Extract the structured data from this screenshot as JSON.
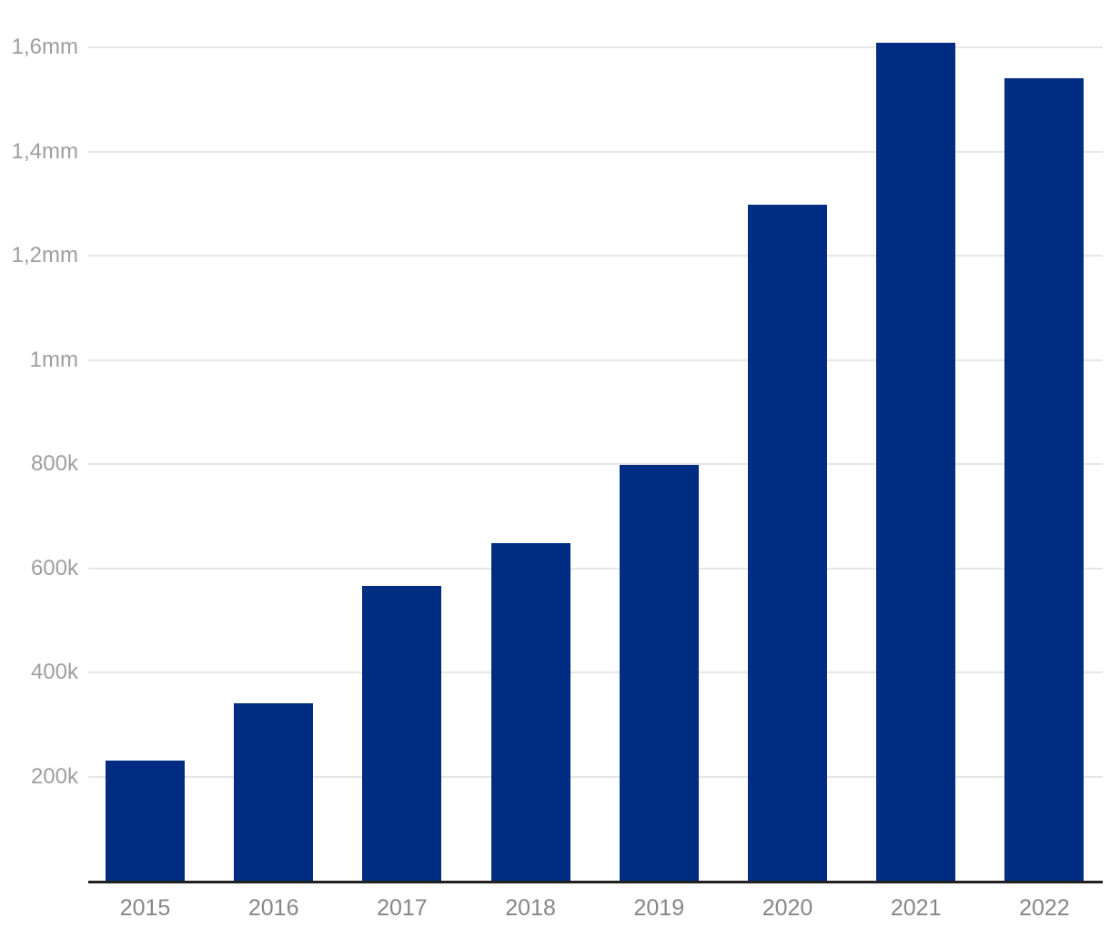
{
  "chart_data": {
    "type": "bar",
    "title": "",
    "xlabel": "",
    "ylabel": "",
    "categories": [
      "2015",
      "2016",
      "2017",
      "2018",
      "2019",
      "2020",
      "2021",
      "2022"
    ],
    "values": [
      230800,
      341400,
      566000,
      647500,
      798000,
      1298000,
      1608000,
      1541000
    ],
    "yticks": [
      {
        "value": 200000,
        "label": "200k"
      },
      {
        "value": 400000,
        "label": "400k"
      },
      {
        "value": 600000,
        "label": "600k"
      },
      {
        "value": 800000,
        "label": "800k"
      },
      {
        "value": 1000000,
        "label": "1mm"
      },
      {
        "value": 1200000,
        "label": "1,2mm"
      },
      {
        "value": 1400000,
        "label": "1,4mm"
      },
      {
        "value": 1600000,
        "label": "1,6mm"
      }
    ],
    "ylim": [
      0,
      1690000
    ],
    "grid": "horizontal-only",
    "legend": "none",
    "colors": {
      "bar": "#002d82",
      "gridline": "#e7e7e7",
      "axis_line": "#212121",
      "y_tick_text": "#9e9e9e",
      "x_tick_text": "#878787",
      "background": "#ffffff"
    }
  }
}
